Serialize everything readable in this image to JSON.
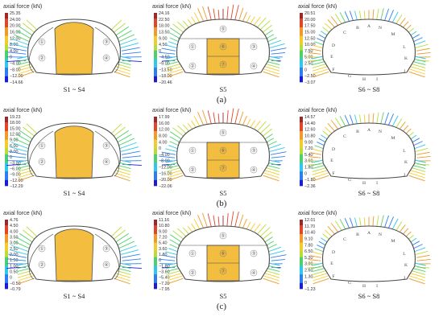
{
  "title": "axial force (kN)",
  "colors": {
    "highlight": "#f3bd3f",
    "outline": "#4a4a4a",
    "ramp": [
      "#1c1cd6",
      "#2e7ef0",
      "#30c8e8",
      "#4fd06a",
      "#b8dd3a",
      "#f2cc2e",
      "#f09a28",
      "#e0462a",
      "#9a2a2a"
    ]
  },
  "rows": [
    {
      "label": "(a)",
      "panels": [
        {
          "case": "S1 ~ S4",
          "kind": "side",
          "ticks": [
            "25.35",
            "24.00",
            "20.00",
            "16.00",
            "12.00",
            "8.00",
            "4.00",
            "0",
            "−4.00",
            "−8.00",
            "−12.00",
            "−14.66"
          ],
          "values": [
            25.35,
            24.0,
            20.0,
            16.0,
            12.0,
            8.0,
            4.0,
            0,
            -4.0,
            -8.0,
            -12.0,
            -14.66
          ]
        },
        {
          "case": "S5",
          "kind": "center",
          "ticks": [
            "24.16",
            "22.50",
            "18.00",
            "13.50",
            "9.00",
            "4.50",
            "0",
            "−4.50",
            "−9.00",
            "−13.50",
            "−18.00",
            "−20.46"
          ],
          "values": [
            24.16,
            22.5,
            18.0,
            13.5,
            9.0,
            4.5,
            0,
            -4.5,
            -9.0,
            -13.5,
            -18.0,
            -20.46
          ]
        },
        {
          "case": "S6 ~ S8",
          "kind": "full",
          "ticks": [
            "20.51",
            "20.00",
            "17.50",
            "15.00",
            "12.50",
            "10.00",
            "7.50",
            "5.00",
            "2.50",
            "0",
            "−2.50",
            "−3.07"
          ],
          "values": [
            20.51,
            20.0,
            17.5,
            15.0,
            12.5,
            10.0,
            7.5,
            5.0,
            2.5,
            0,
            -2.5,
            -3.07
          ]
        }
      ]
    },
    {
      "label": "(b)",
      "panels": [
        {
          "case": "S1 ~ S4",
          "kind": "side",
          "ticks": [
            "19.23",
            "18.00",
            "15.00",
            "12.00",
            "9.00",
            "6.00",
            "3.00",
            "0",
            "−3.00",
            "−6.00",
            "−9.00",
            "−12.00",
            "−12.29"
          ],
          "values": [
            19.23,
            18.0,
            15.0,
            12.0,
            9.0,
            6.0,
            3.0,
            0,
            -3.0,
            -6.0,
            -9.0,
            -12.0,
            -12.29
          ]
        },
        {
          "case": "S5",
          "kind": "center",
          "ticks": [
            "17.99",
            "16.00",
            "12.00",
            "8.00",
            "4.00",
            "0",
            "−4.00",
            "−8.00",
            "−12.00",
            "−16.00",
            "−20.00",
            "−22.06"
          ],
          "values": [
            17.99,
            16.0,
            12.0,
            8.0,
            4.0,
            0,
            -4.0,
            -8.0,
            -12.0,
            -16.0,
            -20.0,
            -22.06
          ]
        },
        {
          "case": "S6 ~ S8",
          "kind": "full",
          "ticks": [
            "14.57",
            "14.40",
            "12.60",
            "10.80",
            "9.00",
            "7.20",
            "5.40",
            "3.60",
            "1.80",
            "0",
            "−1.80",
            "−2.36"
          ],
          "values": [
            14.57,
            14.4,
            12.6,
            10.8,
            9.0,
            7.2,
            5.4,
            3.6,
            1.8,
            0,
            -1.8,
            -2.36
          ]
        }
      ]
    },
    {
      "label": "(c)",
      "panels": [
        {
          "case": "S1 ~ S4",
          "kind": "side",
          "ticks": [
            "4.76",
            "4.50",
            "4.00",
            "3.50",
            "3.00",
            "2.50",
            "2.00",
            "1.50",
            "1.00",
            "0.50",
            "0",
            "−0.50",
            "−0.79"
          ],
          "values": [
            4.76,
            4.5,
            4.0,
            3.5,
            3.0,
            2.5,
            2.0,
            1.5,
            1.0,
            0.5,
            0,
            -0.5,
            -0.79
          ]
        },
        {
          "case": "S5",
          "kind": "center",
          "ticks": [
            "11.16",
            "10.80",
            "9.00",
            "7.20",
            "5.40",
            "3.60",
            "1.80",
            "0",
            "−1.80",
            "−3.60",
            "−5.40",
            "−7.20",
            "−7.95"
          ],
          "values": [
            11.16,
            10.8,
            9.0,
            7.2,
            5.4,
            3.6,
            1.8,
            0,
            -1.8,
            -3.6,
            -5.4,
            -7.2,
            -7.95
          ]
        },
        {
          "case": "S6 ~ S8",
          "kind": "full",
          "ticks": [
            "12.01",
            "11.70",
            "10.40",
            "9.10",
            "7.80",
            "6.50",
            "5.20",
            "3.90",
            "2.60",
            "1.30",
            "0",
            "−1.23"
          ],
          "values": [
            12.01,
            11.7,
            10.4,
            9.1,
            7.8,
            6.5,
            5.2,
            3.9,
            2.6,
            1.3,
            0,
            -1.23
          ]
        }
      ]
    }
  ],
  "section_numbers": {
    "side": [
      "①",
      "②",
      "③",
      "④"
    ],
    "center": [
      "⑤",
      "⑥",
      "⑦",
      "②",
      "④",
      "①",
      "③"
    ]
  },
  "node_letters": [
    "A",
    "B",
    "C",
    "D",
    "E",
    "F",
    "G",
    "H",
    "I",
    "J",
    "K",
    "L",
    "M",
    "N"
  ]
}
